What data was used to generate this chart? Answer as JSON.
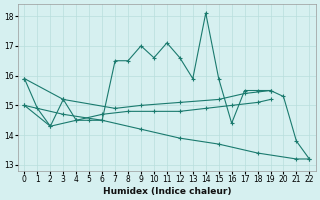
{
  "xlabel": "Humidex (Indice chaleur)",
  "background_color": "#d6f0f0",
  "line_color": "#1a7a6e",
  "grid_color": "#b8dedd",
  "xlim": [
    -0.5,
    22.5
  ],
  "ylim": [
    12.8,
    18.4
  ],
  "xticks": [
    0,
    1,
    2,
    3,
    4,
    5,
    6,
    7,
    8,
    9,
    10,
    11,
    12,
    13,
    14,
    15,
    16,
    17,
    18,
    19,
    20,
    21,
    22
  ],
  "yticks": [
    13,
    14,
    15,
    16,
    17,
    18
  ],
  "series1": {
    "x": [
      0,
      1,
      2,
      3,
      4,
      5,
      6,
      7,
      8,
      9,
      10,
      11,
      12,
      13,
      14,
      15,
      16,
      17,
      18,
      19,
      20,
      21,
      22
    ],
    "y": [
      15.9,
      14.9,
      14.3,
      15.2,
      14.5,
      14.5,
      14.5,
      16.5,
      16.5,
      17.0,
      16.6,
      17.1,
      16.6,
      15.9,
      18.1,
      15.9,
      14.4,
      15.5,
      15.5,
      15.5,
      15.3,
      13.8,
      13.2
    ]
  },
  "series2": {
    "x": [
      0,
      3,
      7,
      9,
      12,
      15,
      17,
      19
    ],
    "y": [
      15.9,
      15.2,
      14.9,
      15.0,
      15.1,
      15.2,
      15.4,
      15.5
    ]
  },
  "series3": {
    "x": [
      0,
      2,
      4,
      6,
      8,
      10,
      12,
      14,
      16,
      18,
      19
    ],
    "y": [
      15.0,
      14.3,
      14.5,
      14.7,
      14.8,
      14.8,
      14.8,
      14.9,
      15.0,
      15.1,
      15.2
    ]
  },
  "series4": {
    "x": [
      0,
      3,
      6,
      9,
      12,
      15,
      18,
      21,
      22
    ],
    "y": [
      15.0,
      14.7,
      14.5,
      14.2,
      13.9,
      13.7,
      13.4,
      13.2,
      13.2
    ]
  }
}
